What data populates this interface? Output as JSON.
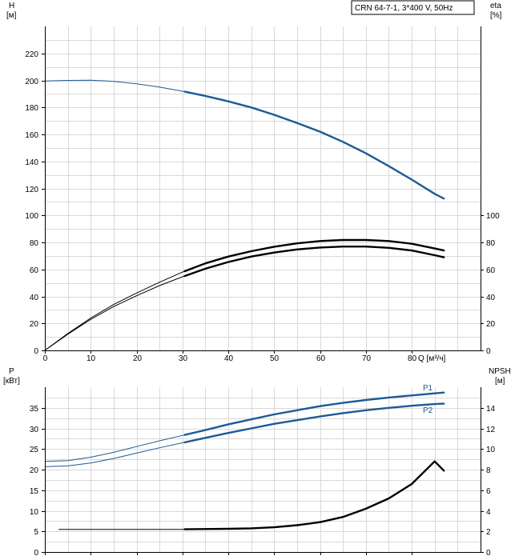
{
  "title_box": "CRN 64-7-1, 3*400 V, 50Hz",
  "colors": {
    "blue": "#1d5a96",
    "black": "#000000",
    "grid": "#d9d9d9"
  },
  "chart_data": [
    {
      "type": "line",
      "panel": "top",
      "ylabel_left": "H",
      "ylabel_left_unit": "[м]",
      "ylabel_right": "eta",
      "ylabel_right_unit": "[%]",
      "xlabel": "Q [м³/ч]",
      "xlim": [
        0,
        95
      ],
      "ylim_left": [
        0,
        240
      ],
      "ylim_right": [
        0,
        240
      ],
      "x_ticks": [
        0,
        10,
        20,
        30,
        40,
        50,
        60,
        70,
        80
      ],
      "y_ticks_left": [
        0,
        20,
        40,
        60,
        80,
        100,
        120,
        140,
        160,
        180,
        200,
        220
      ],
      "y_ticks_right": [
        0,
        20,
        40,
        60,
        80,
        100
      ],
      "grid": true,
      "series": [
        {
          "axis": "left",
          "color": "blue",
          "operating_from": 30.5,
          "x": [
            0,
            5,
            10,
            15,
            20,
            25,
            30,
            35,
            40,
            45,
            50,
            55,
            60,
            65,
            70,
            75,
            80,
            85,
            87
          ],
          "y": [
            199.5,
            200,
            200.2,
            199.3,
            197.5,
            195,
            192,
            188.5,
            184.5,
            180,
            174.5,
            168.5,
            162,
            154.5,
            146,
            136.5,
            126.5,
            116,
            112.5
          ]
        },
        {
          "axis": "right",
          "color": "black",
          "operating_from": 30.5,
          "x": [
            0,
            5,
            10,
            15,
            20,
            25,
            30,
            35,
            40,
            45,
            50,
            55,
            60,
            65,
            70,
            75,
            80,
            85,
            87
          ],
          "y": [
            0,
            12,
            23,
            32.5,
            40.5,
            48,
            54.5,
            60.5,
            65.5,
            69.5,
            72.5,
            74.8,
            76.2,
            76.9,
            76.9,
            76,
            74,
            70.5,
            69
          ]
        },
        {
          "axis": "right",
          "color": "black",
          "operating_from": 30.5,
          "x": [
            0,
            5,
            10,
            15,
            20,
            25,
            30,
            35,
            40,
            45,
            50,
            55,
            60,
            65,
            70,
            75,
            80,
            85,
            87
          ],
          "y": [
            0,
            12.5,
            24,
            34,
            42.5,
            50.5,
            58,
            64.5,
            69.5,
            73.5,
            76.8,
            79.3,
            81,
            81.8,
            81.8,
            81,
            79,
            75.5,
            74
          ]
        }
      ]
    },
    {
      "type": "line",
      "panel": "bottom",
      "ylabel_left": "P",
      "ylabel_left_unit": "[кВт]",
      "ylabel_right": "NPSH",
      "ylabel_right_unit": "[м]",
      "xlim": [
        0,
        95
      ],
      "ylim_left": [
        0,
        40
      ],
      "ylim_right": [
        0,
        16
      ],
      "y_ticks_left": [
        0,
        5,
        10,
        15,
        20,
        25,
        30,
        35
      ],
      "y_ticks_right": [
        0,
        2,
        4,
        6,
        8,
        10,
        12,
        14
      ],
      "grid": true,
      "series": [
        {
          "name": "P1",
          "axis": "left",
          "color": "blue",
          "operating_from": 30.5,
          "x": [
            0,
            5,
            10,
            15,
            20,
            25,
            30,
            35,
            40,
            45,
            50,
            55,
            60,
            65,
            70,
            75,
            80,
            85,
            87
          ],
          "y": [
            22,
            22.2,
            23,
            24.2,
            25.6,
            27,
            28.3,
            29.6,
            31,
            32.2,
            33.4,
            34.4,
            35.4,
            36.2,
            36.9,
            37.5,
            38,
            38.5,
            38.7
          ]
        },
        {
          "name": "P2",
          "axis": "left",
          "color": "blue",
          "operating_from": 30.5,
          "x": [
            0,
            5,
            10,
            15,
            20,
            25,
            30,
            35,
            40,
            45,
            50,
            55,
            60,
            65,
            70,
            75,
            80,
            85,
            87
          ],
          "y": [
            20.7,
            20.9,
            21.6,
            22.7,
            24,
            25.3,
            26.5,
            27.7,
            28.9,
            30,
            31.1,
            32,
            32.9,
            33.7,
            34.4,
            35,
            35.5,
            35.9,
            36
          ]
        },
        {
          "axis": "right",
          "color": "black",
          "operating_from": 30.5,
          "x": [
            3,
            10,
            20,
            30,
            40,
            45,
            50,
            55,
            60,
            65,
            70,
            75,
            80,
            85,
            87
          ],
          "y": [
            2.2,
            2.2,
            2.2,
            2.2,
            2.25,
            2.3,
            2.4,
            2.6,
            2.9,
            3.4,
            4.2,
            5.2,
            6.6,
            8.8,
            7.9
          ]
        }
      ]
    }
  ]
}
